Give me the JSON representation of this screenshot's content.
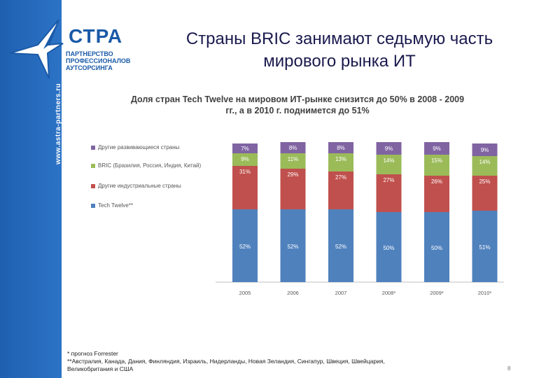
{
  "logo": {
    "name": "СТРА",
    "subtitle_lines": [
      "ПАРТНЕРСТВО",
      "ПРОФЕССИОНАЛОВ",
      "АУТСОРСИНГА"
    ],
    "url": "www.astra-partners.ru"
  },
  "slide": {
    "title_line1": "Страны BRIC занимают седьмую часть",
    "title_line2": "мирового рынка ИТ",
    "footnote_line1": "* прогноз Forrester",
    "footnote_line2": "**Австралия, Канада, Дания, Финляндия, Израиль, Нидерланды, Новая Зеландия, Сингапур, Швеция, Швейцария,",
    "footnote_line3": "Великобритания и США",
    "page_number": "8"
  },
  "colors": {
    "sidebar": "#2468b8",
    "tech12": "#4f81bd",
    "other_industrial": "#c0504d",
    "bric": "#9bbb59",
    "other_developing": "#8064a2"
  },
  "chart_data": {
    "type": "bar",
    "stacked": true,
    "title_line1": "Доля стран Tech Twelve на мировом ИТ-рынке снизится до 50% в 2008 - 2009",
    "title_line2": "гг., а в 2010 г. поднимется до 51%",
    "categories": [
      "2005",
      "2006",
      "2007",
      "2008*",
      "2009*",
      "2010*"
    ],
    "ylim": [
      0,
      100
    ],
    "grid": false,
    "legend_position": "left",
    "series": [
      {
        "name": "Tech Twelve**",
        "color": "#4f81bd",
        "values": [
          52,
          52,
          52,
          50,
          50,
          51
        ],
        "labels": [
          "52%",
          "52%",
          "52%",
          "50%",
          "50%",
          "51%"
        ]
      },
      {
        "name": "Другие индустриальные страны",
        "color": "#c0504d",
        "values": [
          31,
          29,
          27,
          27,
          26,
          25
        ],
        "labels": [
          "31%",
          "29%",
          "27%",
          "27%",
          "26%",
          "25%"
        ]
      },
      {
        "name": "BRIC (Бразилия, Россия, Индия, Китай)",
        "color": "#9bbb59",
        "values": [
          9,
          11,
          13,
          14,
          15,
          14
        ],
        "labels": [
          "9%",
          "11%",
          "13%",
          "14%",
          "15%",
          "14%"
        ]
      },
      {
        "name": "Другие развивающиеся страны",
        "color": "#8064a2",
        "values": [
          7,
          8,
          8,
          9,
          9,
          9
        ],
        "labels": [
          "7%",
          "8%",
          "8%",
          "9%",
          "9%",
          "9%"
        ]
      }
    ]
  }
}
